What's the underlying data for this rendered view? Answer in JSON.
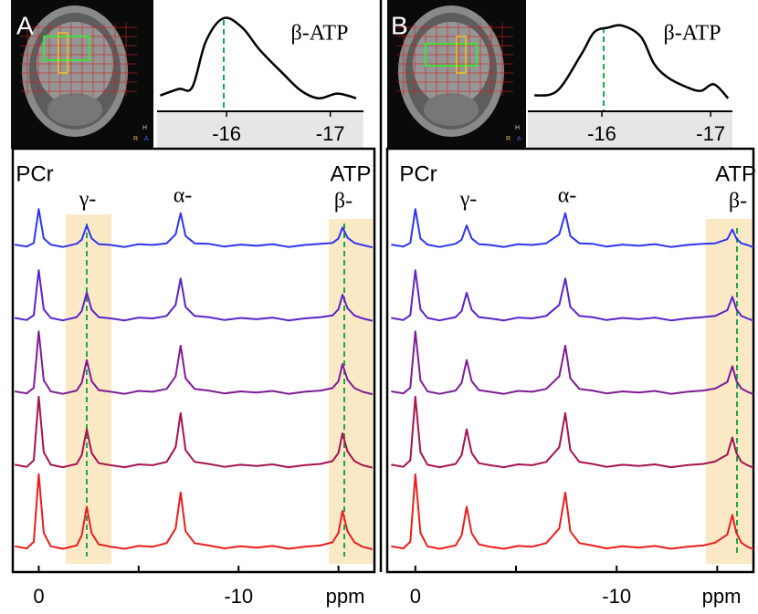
{
  "chart_data": [
    {
      "type": "line",
      "label": "A",
      "annotations": [
        "PCr",
        "γ-",
        "α-",
        "ATP",
        "β-"
      ],
      "orientation_labels": [
        "H",
        "R",
        "A"
      ],
      "x": [
        1.2,
        0.6,
        0.25,
        0,
        -0.25,
        -0.6,
        -1.2,
        -1.9,
        -2.15,
        -2.4,
        -2.65,
        -3.0,
        -3.6,
        -4.3,
        -5.0,
        -5.7,
        -6.4,
        -6.85,
        -7.1,
        -7.35,
        -7.8,
        -8.5,
        -9.3,
        -10.1,
        -10.9,
        -11.7,
        -12.5,
        -13.3,
        -14.1,
        -14.7,
        -15.0,
        -15.2,
        -15.45,
        -15.8,
        -16.2,
        -16.7
      ],
      "xlim": [
        1.3,
        -16.8
      ],
      "xticks": [
        0,
        -10
      ],
      "minor_xticks": [
        -5,
        -15
      ],
      "xlabel": "ppm",
      "ylim": [
        0,
        10
      ],
      "series": [
        {
          "color": "#2e35f0",
          "values": [
            8.03,
            7.98,
            8.07,
            8.9,
            8.18,
            8.03,
            7.97,
            8.05,
            8.15,
            8.5,
            8.18,
            8.04,
            8.02,
            7.97,
            8.04,
            8.02,
            8.06,
            8.28,
            8.8,
            8.24,
            8.06,
            8.05,
            7.98,
            8.03,
            8.0,
            8.04,
            7.97,
            8.02,
            8.05,
            8.07,
            8.18,
            8.45,
            8.2,
            8.07,
            8.02,
            7.96
          ]
        },
        {
          "color": "#5b22c8",
          "values": [
            6.23,
            6.18,
            6.3,
            7.4,
            6.44,
            6.23,
            6.17,
            6.25,
            6.4,
            6.85,
            6.43,
            6.25,
            6.22,
            6.17,
            6.24,
            6.22,
            6.28,
            6.55,
            7.2,
            6.5,
            6.28,
            6.25,
            6.18,
            6.23,
            6.2,
            6.24,
            6.17,
            6.22,
            6.25,
            6.29,
            6.44,
            6.8,
            6.47,
            6.29,
            6.22,
            6.16
          ]
        },
        {
          "color": "#7d1b94",
          "values": [
            4.43,
            4.38,
            4.52,
            5.9,
            4.7,
            4.43,
            4.37,
            4.45,
            4.64,
            5.2,
            4.68,
            4.46,
            4.42,
            4.37,
            4.44,
            4.42,
            4.49,
            4.8,
            5.55,
            4.75,
            4.49,
            4.45,
            4.38,
            4.43,
            4.4,
            4.44,
            4.37,
            4.42,
            4.45,
            4.51,
            4.68,
            5.1,
            4.72,
            4.51,
            4.42,
            4.36
          ]
        },
        {
          "color": "#a5124f",
          "values": [
            2.63,
            2.58,
            2.74,
            4.3,
            2.94,
            2.63,
            2.57,
            2.65,
            2.87,
            3.5,
            2.92,
            2.67,
            2.62,
            2.57,
            2.64,
            2.62,
            2.7,
            3.06,
            3.9,
            2.99,
            2.7,
            2.65,
            2.58,
            2.63,
            2.6,
            2.64,
            2.57,
            2.62,
            2.65,
            2.72,
            2.92,
            3.4,
            2.96,
            2.72,
            2.62,
            2.56
          ]
        },
        {
          "color": "#ec1c1c",
          "values": [
            0.63,
            0.58,
            0.74,
            2.4,
            0.96,
            0.63,
            0.57,
            0.65,
            0.9,
            1.6,
            0.95,
            0.68,
            0.62,
            0.57,
            0.64,
            0.62,
            0.71,
            1.07,
            1.95,
            1.0,
            0.71,
            0.65,
            0.58,
            0.63,
            0.6,
            0.64,
            0.57,
            0.62,
            0.65,
            0.73,
            0.96,
            1.5,
            1.0,
            0.73,
            0.62,
            0.56
          ]
        }
      ],
      "inset": {
        "type": "line",
        "title": "β-ATP",
        "color": "#000000",
        "x": [
          -15.36,
          -15.54,
          -15.67,
          -15.8,
          -15.97,
          -16.15,
          -16.32,
          -16.54,
          -16.72,
          -16.89,
          -17.07,
          -17.25
        ],
        "values": [
          0.17,
          0.24,
          0.26,
          0.75,
          1.0,
          0.9,
          0.66,
          0.41,
          0.22,
          0.14,
          0.19,
          0.14
        ],
        "xlim": [
          -15.33,
          -17.32
        ],
        "xticks": [
          -16,
          -17
        ],
        "ylim": [
          0,
          1
        ]
      }
    },
    {
      "type": "line",
      "label": "B",
      "annotations": [
        "PCr",
        "γ-",
        "α-",
        "ATP",
        "β-"
      ],
      "orientation_labels": [
        "H",
        "R",
        "A"
      ],
      "x": [
        1.2,
        0.6,
        0.25,
        0,
        -0.25,
        -0.6,
        -1.2,
        -2.0,
        -2.3,
        -2.55,
        -2.8,
        -3.15,
        -3.7,
        -4.4,
        -5.1,
        -5.8,
        -6.5,
        -7.15,
        -7.45,
        -7.7,
        -8.15,
        -8.8,
        -9.5,
        -10.3,
        -11.1,
        -11.9,
        -12.7,
        -13.5,
        -14.3,
        -14.9,
        -15.5,
        -15.75,
        -15.95,
        -16.2,
        -16.5,
        -16.8
      ],
      "xlim": [
        1.4,
        -16.8
      ],
      "xticks": [
        0,
        -10
      ],
      "minor_xticks": [
        -5,
        -15
      ],
      "xlabel": "ppm",
      "ylim": [
        0,
        10
      ],
      "series": [
        {
          "color": "#2e35f0",
          "values": [
            8.03,
            7.98,
            8.07,
            8.9,
            8.18,
            8.03,
            7.97,
            8.05,
            8.15,
            8.5,
            8.18,
            8.04,
            8.02,
            7.97,
            8.04,
            8.02,
            8.06,
            8.28,
            8.8,
            8.24,
            8.06,
            8.05,
            7.98,
            8.03,
            8.0,
            8.04,
            7.97,
            8.02,
            8.05,
            8.06,
            8.16,
            8.4,
            8.18,
            8.06,
            8.02,
            7.96
          ]
        },
        {
          "color": "#5b22c8",
          "values": [
            6.23,
            6.18,
            6.3,
            7.4,
            6.44,
            6.23,
            6.17,
            6.25,
            6.4,
            6.85,
            6.43,
            6.25,
            6.22,
            6.17,
            6.24,
            6.22,
            6.28,
            6.55,
            7.2,
            6.5,
            6.28,
            6.25,
            6.18,
            6.23,
            6.2,
            6.24,
            6.17,
            6.22,
            6.25,
            6.28,
            6.42,
            6.75,
            6.45,
            6.28,
            6.22,
            6.16
          ]
        },
        {
          "color": "#7d1b94",
          "values": [
            4.43,
            4.38,
            4.52,
            5.9,
            4.7,
            4.43,
            4.37,
            4.45,
            4.64,
            5.2,
            4.68,
            4.46,
            4.42,
            4.37,
            4.44,
            4.42,
            4.49,
            4.8,
            5.55,
            4.75,
            4.49,
            4.45,
            4.38,
            4.43,
            4.4,
            4.44,
            4.37,
            4.42,
            4.45,
            4.5,
            4.66,
            5.05,
            4.69,
            4.5,
            4.42,
            4.36
          ]
        },
        {
          "color": "#a5124f",
          "values": [
            2.63,
            2.58,
            2.74,
            4.3,
            2.94,
            2.63,
            2.57,
            2.65,
            2.87,
            3.5,
            2.92,
            2.67,
            2.62,
            2.57,
            2.64,
            2.62,
            2.7,
            3.06,
            3.9,
            2.99,
            2.7,
            2.65,
            2.58,
            2.63,
            2.6,
            2.64,
            2.57,
            2.62,
            2.65,
            2.71,
            2.88,
            3.3,
            2.92,
            2.7,
            2.62,
            2.56
          ]
        },
        {
          "color": "#ec1c1c",
          "values": [
            0.63,
            0.58,
            0.74,
            2.4,
            0.96,
            0.63,
            0.57,
            0.65,
            0.9,
            1.6,
            0.95,
            0.68,
            0.62,
            0.57,
            0.64,
            0.62,
            0.71,
            1.07,
            1.95,
            1.0,
            0.71,
            0.65,
            0.58,
            0.63,
            0.6,
            0.64,
            0.57,
            0.62,
            0.65,
            0.72,
            0.92,
            1.4,
            0.96,
            0.72,
            0.62,
            0.56
          ]
        }
      ],
      "inset": {
        "type": "line",
        "title": "β-ATP",
        "color": "#000000",
        "x": [
          -15.38,
          -15.59,
          -15.81,
          -15.93,
          -16.06,
          -16.19,
          -16.36,
          -16.48,
          -16.61,
          -16.78,
          -16.91,
          -17.03,
          -17.16
        ],
        "values": [
          0.17,
          0.22,
          0.61,
          0.85,
          0.9,
          0.92,
          0.8,
          0.51,
          0.36,
          0.26,
          0.22,
          0.29,
          0.14
        ],
        "xlim": [
          -15.32,
          -17.2
        ],
        "xticks": [
          -16,
          -17
        ],
        "ylim": [
          0,
          1
        ]
      }
    }
  ]
}
